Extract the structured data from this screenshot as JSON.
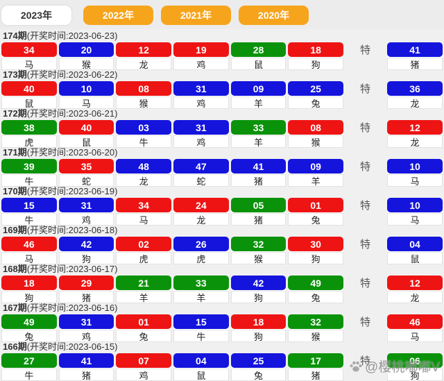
{
  "tabs": [
    {
      "label": "2023年",
      "active": true
    },
    {
      "label": "2022年",
      "active": false
    },
    {
      "label": "2021年",
      "active": false
    },
    {
      "label": "2020年",
      "active": false
    }
  ],
  "special_label": "特",
  "watermark": {
    "icon": "paw-icon",
    "text": "@樱桃嘟嘟V"
  },
  "colors": {
    "red": "#ee1414",
    "blue": "#1414dd",
    "green": "#0a930a",
    "tab_orange": "#f7a41d"
  },
  "draws": [
    {
      "period": "174期",
      "time": "(开奖时间:2023-06-23)",
      "numbers": [
        {
          "num": "34",
          "zodiac": "马",
          "color": "red"
        },
        {
          "num": "20",
          "zodiac": "猴",
          "color": "blue"
        },
        {
          "num": "12",
          "zodiac": "龙",
          "color": "red"
        },
        {
          "num": "19",
          "zodiac": "鸡",
          "color": "red"
        },
        {
          "num": "28",
          "zodiac": "鼠",
          "color": "green"
        },
        {
          "num": "18",
          "zodiac": "狗",
          "color": "red"
        }
      ],
      "special": {
        "num": "41",
        "zodiac": "猪",
        "color": "blue"
      }
    },
    {
      "period": "173期",
      "time": "(开奖时间:2023-06-22)",
      "numbers": [
        {
          "num": "40",
          "zodiac": "鼠",
          "color": "red"
        },
        {
          "num": "10",
          "zodiac": "马",
          "color": "blue"
        },
        {
          "num": "08",
          "zodiac": "猴",
          "color": "red"
        },
        {
          "num": "31",
          "zodiac": "鸡",
          "color": "blue"
        },
        {
          "num": "09",
          "zodiac": "羊",
          "color": "blue"
        },
        {
          "num": "25",
          "zodiac": "兔",
          "color": "blue"
        }
      ],
      "special": {
        "num": "36",
        "zodiac": "龙",
        "color": "blue"
      }
    },
    {
      "period": "172期",
      "time": "(开奖时间:2023-06-21)",
      "numbers": [
        {
          "num": "38",
          "zodiac": "虎",
          "color": "green"
        },
        {
          "num": "40",
          "zodiac": "鼠",
          "color": "red"
        },
        {
          "num": "03",
          "zodiac": "牛",
          "color": "blue"
        },
        {
          "num": "31",
          "zodiac": "鸡",
          "color": "blue"
        },
        {
          "num": "33",
          "zodiac": "羊",
          "color": "green"
        },
        {
          "num": "08",
          "zodiac": "猴",
          "color": "red"
        }
      ],
      "special": {
        "num": "12",
        "zodiac": "龙",
        "color": "red"
      }
    },
    {
      "period": "171期",
      "time": "(开奖时间:2023-06-20)",
      "numbers": [
        {
          "num": "39",
          "zodiac": "牛",
          "color": "green"
        },
        {
          "num": "35",
          "zodiac": "蛇",
          "color": "red"
        },
        {
          "num": "48",
          "zodiac": "龙",
          "color": "blue"
        },
        {
          "num": "47",
          "zodiac": "蛇",
          "color": "blue"
        },
        {
          "num": "41",
          "zodiac": "猪",
          "color": "blue"
        },
        {
          "num": "09",
          "zodiac": "羊",
          "color": "blue"
        }
      ],
      "special": {
        "num": "10",
        "zodiac": "马",
        "color": "blue"
      }
    },
    {
      "period": "170期",
      "time": "(开奖时间:2023-06-19)",
      "numbers": [
        {
          "num": "15",
          "zodiac": "牛",
          "color": "blue"
        },
        {
          "num": "31",
          "zodiac": "鸡",
          "color": "blue"
        },
        {
          "num": "34",
          "zodiac": "马",
          "color": "red"
        },
        {
          "num": "24",
          "zodiac": "龙",
          "color": "red"
        },
        {
          "num": "05",
          "zodiac": "猪",
          "color": "green"
        },
        {
          "num": "01",
          "zodiac": "兔",
          "color": "red"
        }
      ],
      "special": {
        "num": "10",
        "zodiac": "马",
        "color": "blue"
      }
    },
    {
      "period": "169期",
      "time": "(开奖时间:2023-06-18)",
      "numbers": [
        {
          "num": "46",
          "zodiac": "马",
          "color": "red"
        },
        {
          "num": "42",
          "zodiac": "狗",
          "color": "blue"
        },
        {
          "num": "02",
          "zodiac": "虎",
          "color": "red"
        },
        {
          "num": "26",
          "zodiac": "虎",
          "color": "blue"
        },
        {
          "num": "32",
          "zodiac": "猴",
          "color": "green"
        },
        {
          "num": "30",
          "zodiac": "狗",
          "color": "red"
        }
      ],
      "special": {
        "num": "04",
        "zodiac": "鼠",
        "color": "blue"
      }
    },
    {
      "period": "168期",
      "time": "(开奖时间:2023-06-17)",
      "numbers": [
        {
          "num": "18",
          "zodiac": "狗",
          "color": "red"
        },
        {
          "num": "29",
          "zodiac": "猪",
          "color": "red"
        },
        {
          "num": "21",
          "zodiac": "羊",
          "color": "green"
        },
        {
          "num": "33",
          "zodiac": "羊",
          "color": "green"
        },
        {
          "num": "42",
          "zodiac": "狗",
          "color": "blue"
        },
        {
          "num": "49",
          "zodiac": "兔",
          "color": "green"
        }
      ],
      "special": {
        "num": "12",
        "zodiac": "龙",
        "color": "red"
      }
    },
    {
      "period": "167期",
      "time": "(开奖时间:2023-06-16)",
      "numbers": [
        {
          "num": "49",
          "zodiac": "兔",
          "color": "green"
        },
        {
          "num": "31",
          "zodiac": "鸡",
          "color": "blue"
        },
        {
          "num": "01",
          "zodiac": "兔",
          "color": "red"
        },
        {
          "num": "15",
          "zodiac": "牛",
          "color": "blue"
        },
        {
          "num": "18",
          "zodiac": "狗",
          "color": "red"
        },
        {
          "num": "32",
          "zodiac": "猴",
          "color": "green"
        }
      ],
      "special": {
        "num": "46",
        "zodiac": "马",
        "color": "red"
      }
    },
    {
      "period": "166期",
      "time": "(开奖时间:2023-06-15)",
      "numbers": [
        {
          "num": "27",
          "zodiac": "牛",
          "color": "green"
        },
        {
          "num": "41",
          "zodiac": "猪",
          "color": "blue"
        },
        {
          "num": "07",
          "zodiac": "鸡",
          "color": "red"
        },
        {
          "num": "04",
          "zodiac": "鼠",
          "color": "blue"
        },
        {
          "num": "25",
          "zodiac": "兔",
          "color": "blue"
        },
        {
          "num": "17",
          "zodiac": "猪",
          "color": "green"
        }
      ],
      "special": {
        "num": "06",
        "zodiac": "狗",
        "color": "green"
      }
    }
  ]
}
